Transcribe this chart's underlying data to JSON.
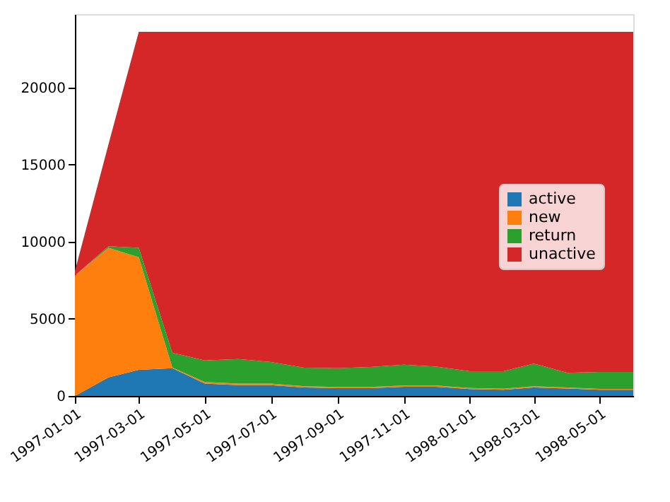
{
  "chart_data": {
    "type": "area",
    "stacked": true,
    "x": [
      "1997-01",
      "1997-02",
      "1997-03",
      "1997-04",
      "1997-05",
      "1997-06",
      "1997-07",
      "1997-08",
      "1997-09",
      "1997-10",
      "1997-11",
      "1997-12",
      "1998-01",
      "1998-02",
      "1998-03",
      "1998-04",
      "1998-05",
      "1998-06"
    ],
    "series": [
      {
        "name": "active",
        "color": "#1f77b4",
        "values": [
          0,
          1200,
          1700,
          1800,
          800,
          700,
          700,
          550,
          500,
          500,
          600,
          600,
          450,
          400,
          550,
          480,
          400,
          400
        ]
      },
      {
        "name": "new",
        "color": "#ff7f0e",
        "values": [
          7800,
          8400,
          7300,
          50,
          100,
          100,
          100,
          80,
          80,
          80,
          80,
          80,
          70,
          70,
          80,
          70,
          60,
          60
        ]
      },
      {
        "name": "return",
        "color": "#2ca02c",
        "values": [
          0,
          100,
          600,
          950,
          1400,
          1600,
          1400,
          1200,
          1220,
          1300,
          1350,
          1220,
          1080,
          1130,
          1470,
          950,
          1100,
          1100
        ]
      },
      {
        "name": "unactive",
        "color": "#d62728",
        "values": [
          300,
          6600,
          14000,
          20800,
          21300,
          21200,
          21400,
          21770,
          21800,
          21720,
          21570,
          21700,
          22000,
          22000,
          21500,
          22100,
          22040,
          22040
        ]
      }
    ],
    "xlim": [
      "1997-01-01",
      "1998-06-01"
    ],
    "xticks": [
      {
        "value": "1997-01-01",
        "label": "1997-01-01"
      },
      {
        "value": "1997-03-01",
        "label": "1997-03-01"
      },
      {
        "value": "1997-05-01",
        "label": "1997-05-01"
      },
      {
        "value": "1997-07-01",
        "label": "1997-07-01"
      },
      {
        "value": "1997-09-01",
        "label": "1997-09-01"
      },
      {
        "value": "1997-11-01",
        "label": "1997-11-01"
      },
      {
        "value": "1998-01-01",
        "label": "1998-01-01"
      },
      {
        "value": "1998-03-01",
        "label": "1998-03-01"
      },
      {
        "value": "1998-05-01",
        "label": "1998-05-01"
      }
    ],
    "ylim": [
      0,
      24750
    ],
    "yticks": [
      0,
      5000,
      10000,
      15000,
      20000
    ],
    "grid": false,
    "legend": "right"
  }
}
